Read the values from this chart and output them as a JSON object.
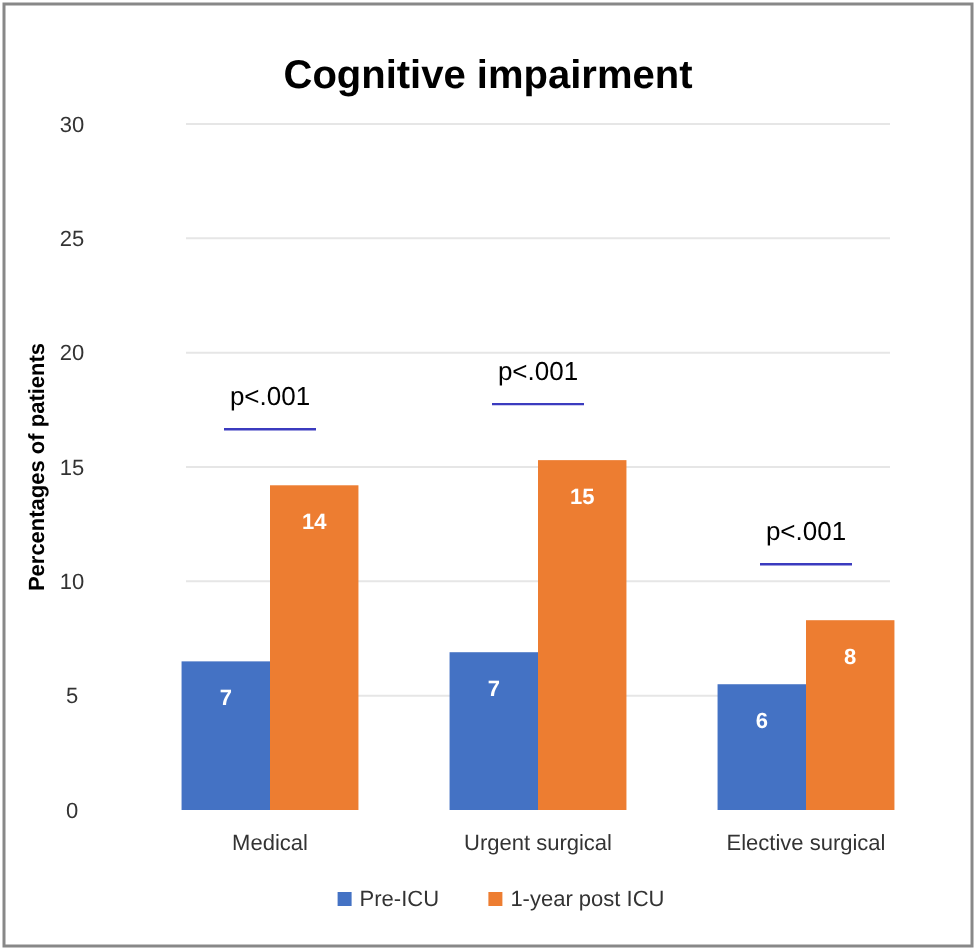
{
  "chart_data": {
    "type": "bar",
    "title": "Cognitive impairment",
    "ylabel": "Percentages of patients",
    "categories": [
      "Medical",
      "Urgent surgical",
      "Elective surgical"
    ],
    "series": [
      {
        "name": "Pre-ICU",
        "color": "#4472c4",
        "values": [
          6.5,
          6.9,
          5.5
        ],
        "value_labels": [
          "7",
          "7",
          "6"
        ]
      },
      {
        "name": "1-year post ICU",
        "color": "#ed7d31",
        "values": [
          14.2,
          15.3,
          8.3
        ],
        "value_labels": [
          "14",
          "15",
          "8"
        ]
      }
    ],
    "annotations": [
      "p<.001",
      "p<.001",
      "p<.001"
    ],
    "ylim": [
      0,
      30
    ],
    "yticks": [
      0,
      5,
      10,
      15,
      20,
      25,
      30
    ],
    "grid": "y",
    "legend": "bottom"
  }
}
